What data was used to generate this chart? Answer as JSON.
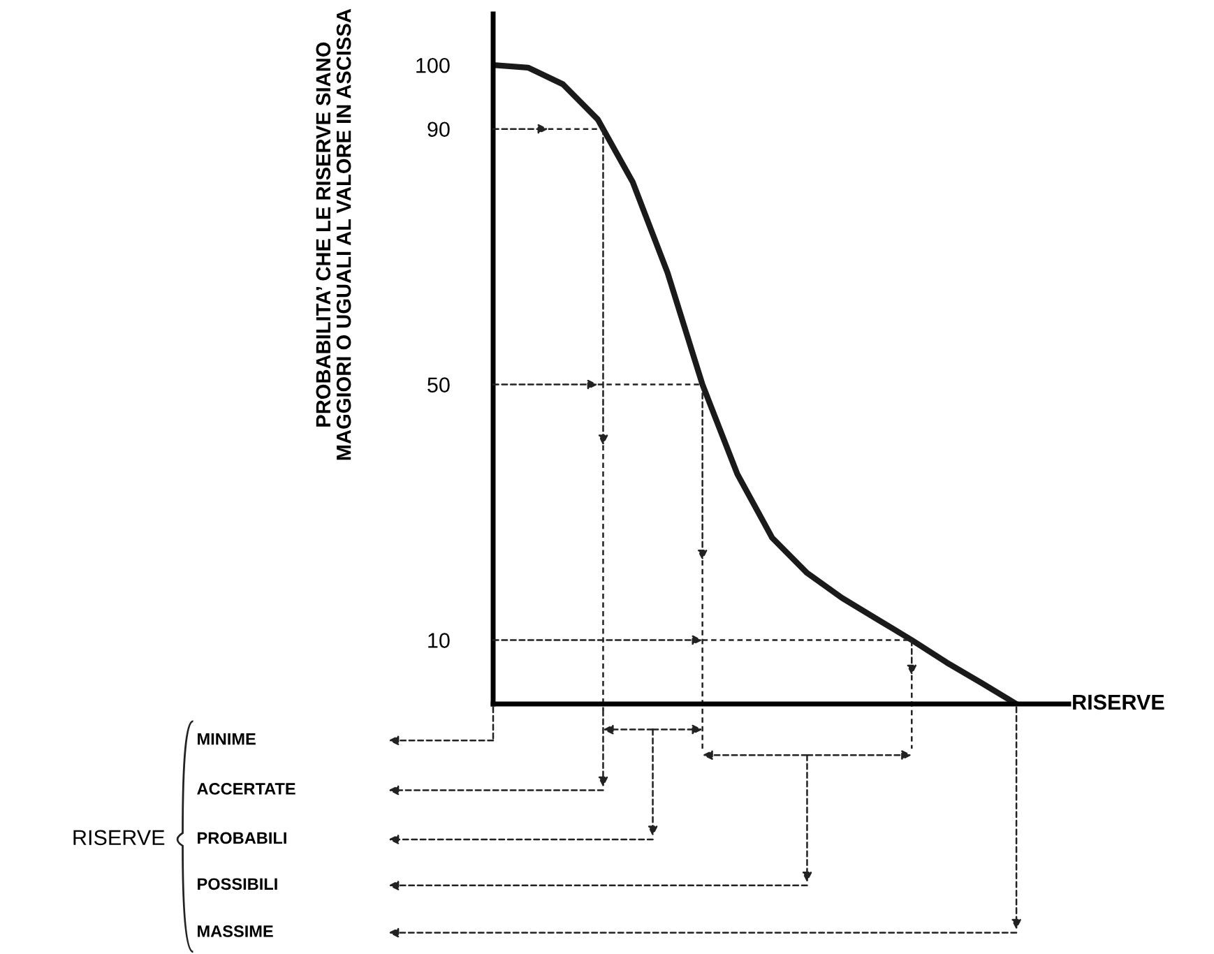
{
  "chart_data": {
    "type": "line",
    "ylabel": "PROBABILITA’ CHE LE RISERVE SIANO\nMAGGIORI O UGUALI AL VALORE IN ASCISSA",
    "xlabel": "RISERVE",
    "categories": [
      null,
      null,
      null,
      null,
      null,
      null,
      null,
      null,
      null,
      null,
      null,
      null,
      null,
      null,
      null,
      null
    ],
    "series": [
      {
        "color": "#1a1a1a",
        "values": [
          100,
          99.6,
          97,
          91.5,
          81.7,
          67.5,
          50,
          36,
          26,
          20.5,
          16.6,
          13.3,
          10,
          6.5,
          3.3,
          0
        ]
      }
    ],
    "ylim": [
      0,
      108
    ],
    "yticks": [
      10,
      50,
      90,
      100
    ],
    "grid": false,
    "legend": false,
    "marker": "none",
    "line_style": "solid",
    "annotations": [
      "MINIME",
      "ACCERTATE",
      "PROBABILI",
      "POSSIBILI",
      "MASSIME",
      "RISERVE"
    ]
  }
}
